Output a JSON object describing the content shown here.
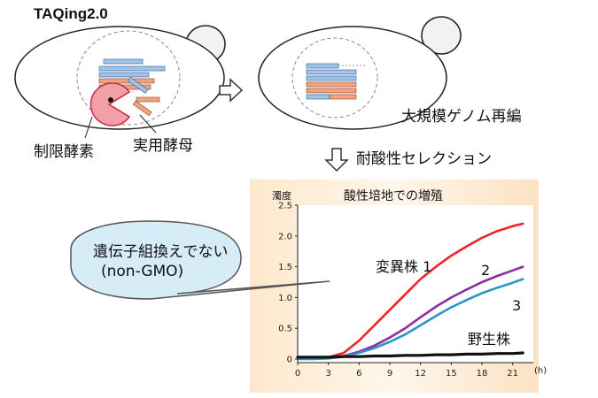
{
  "title": "TAQing2.0",
  "cell_left": {
    "enzyme_label": "制限酵素",
    "yeast_label": "実用酵母"
  },
  "cell_right": {
    "label": "大規模ゲノム再編"
  },
  "selection_label": "耐酸性セレクション",
  "speech_bubble": {
    "line1": "遺伝子組換えでない",
    "line2": "(non-GMO)"
  },
  "colors": {
    "blue_bar": "#9ec4ea",
    "orange_bar": "#f0a47e",
    "enzyme_fill": "#f2a0a8",
    "enzyme_stroke": "#cc2a3a",
    "chart_bg": "#fbe4c6",
    "mutant1": "#e8262b",
    "mutant2": "#8b2f9c",
    "mutant3": "#2a96c6",
    "wild": "#111111",
    "bubble": "#d6edf8"
  },
  "chart_data": {
    "type": "line",
    "title": "酸性培地での増殖",
    "ylabel": "濁度",
    "xlabel": "(h)",
    "xlim": [
      0,
      22.5
    ],
    "ylim": [
      0,
      2.5
    ],
    "xticks": [
      "0",
      "3",
      "6",
      "9",
      "12",
      "15",
      "18",
      "21"
    ],
    "yticks": [
      "0",
      "0.5",
      "1.0",
      "1.5",
      "2.0",
      "2.5"
    ],
    "x": [
      0,
      1.5,
      3,
      4.5,
      6,
      7.5,
      9,
      10.5,
      12,
      13.5,
      15,
      16.5,
      18,
      19.5,
      21,
      22
    ],
    "series": [
      {
        "name": "変異株 1",
        "color": "#e8262b",
        "values": [
          0.02,
          0.02,
          0.03,
          0.1,
          0.3,
          0.55,
          0.8,
          1.05,
          1.3,
          1.5,
          1.68,
          1.83,
          1.97,
          2.08,
          2.16,
          2.2
        ]
      },
      {
        "name": "2",
        "color": "#8b2f9c",
        "values": [
          0.02,
          0.02,
          0.02,
          0.05,
          0.12,
          0.22,
          0.35,
          0.5,
          0.68,
          0.85,
          1.0,
          1.13,
          1.25,
          1.35,
          1.44,
          1.5
        ]
      },
      {
        "name": "3",
        "color": "#2a96c6",
        "values": [
          0.0,
          0.0,
          0.01,
          0.04,
          0.1,
          0.18,
          0.28,
          0.4,
          0.55,
          0.7,
          0.84,
          0.96,
          1.07,
          1.16,
          1.24,
          1.3
        ]
      },
      {
        "name": "野生株",
        "color": "#111111",
        "values": [
          0.03,
          0.03,
          0.03,
          0.04,
          0.04,
          0.05,
          0.05,
          0.06,
          0.06,
          0.07,
          0.07,
          0.08,
          0.08,
          0.09,
          0.09,
          0.1
        ]
      }
    ]
  }
}
